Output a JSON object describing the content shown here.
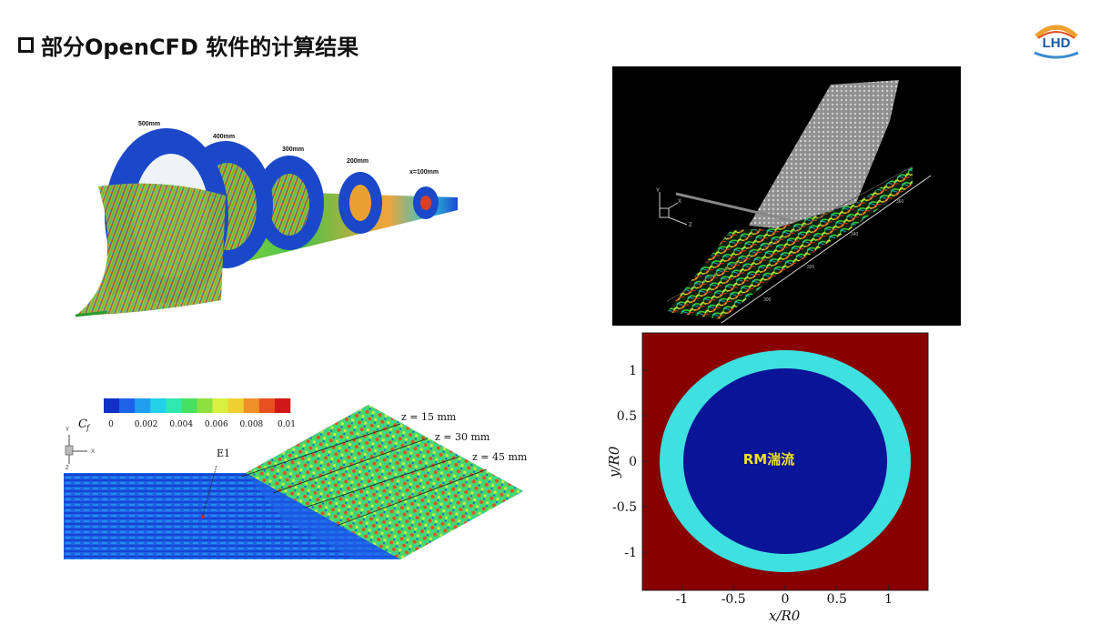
{
  "title": "部分OpenCFD 软件的计算结果",
  "logo": {
    "text": "LHD",
    "icon": "lhd-logo"
  },
  "panel_cone": {
    "station_labels": [
      "500mm",
      "400mm",
      "300mm",
      "200mm",
      "x=100mm"
    ]
  },
  "panel_turbulence": {
    "axis_triad": [
      "Y",
      "X",
      "Z"
    ],
    "tick_labels": [
      "340",
      "320",
      "300",
      "360"
    ]
  },
  "panel_cf": {
    "legend_label": "C",
    "legend_sub": "f",
    "legend_ticks": [
      "0",
      "0.002",
      "0.004",
      "0.006",
      "0.008",
      "0.01"
    ],
    "legend_colors": [
      "#1030c8",
      "#1e62e8",
      "#1f9ef0",
      "#22d0e8",
      "#2ee8b0",
      "#48e060",
      "#8ee040",
      "#d8f040",
      "#f0d030",
      "#f09028",
      "#e85020",
      "#d01818"
    ],
    "z_labels": [
      "z = 15 mm",
      "z = 30 mm",
      "z = 45 mm"
    ],
    "probe_label": "E1",
    "axis_triad": [
      "Y",
      "X",
      "Z"
    ]
  },
  "panel_rm": {
    "center_text": "RM湍流",
    "ylabel": "y/R0",
    "xlabel": "x/R0",
    "y_ticks": [
      "1",
      "0.5",
      "0",
      "-0.5",
      "-1"
    ],
    "x_ticks": [
      "-1",
      "-0.5",
      "0",
      "0.5",
      "1"
    ]
  }
}
